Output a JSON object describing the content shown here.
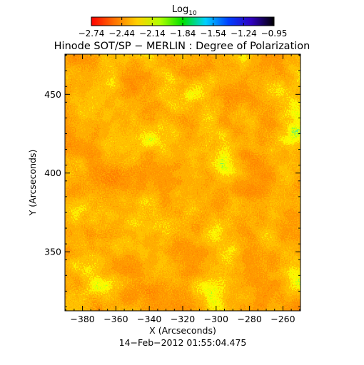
{
  "colorbar": {
    "label_base": "Log",
    "label_sub": "10",
    "ticks": [
      "−2.74",
      "−2.44",
      "−2.14",
      "−1.84",
      "−1.54",
      "−1.24",
      "−0.95"
    ],
    "colors": [
      "#ff0000",
      "#ff7000",
      "#ffd000",
      "#b0ff00",
      "#00e000",
      "#00d0ff",
      "#0040ff",
      "#3000c0",
      "#000000"
    ]
  },
  "title": "Hinode SOT/SP − MERLIN : Degree of Polarization",
  "x_axis": {
    "label": "X (Arcseconds)",
    "ticks": [
      {
        "value": -380,
        "label": "−380"
      },
      {
        "value": -360,
        "label": "−360"
      },
      {
        "value": -340,
        "label": "−340"
      },
      {
        "value": -320,
        "label": "−320"
      },
      {
        "value": -300,
        "label": "−300"
      },
      {
        "value": -280,
        "label": "−280"
      },
      {
        "value": -260,
        "label": "−260"
      }
    ],
    "range": [
      -390.5,
      -249.5
    ]
  },
  "y_axis": {
    "label": "Y (Arcseconds)",
    "ticks": [
      {
        "value": 350,
        "label": "350"
      },
      {
        "value": 400,
        "label": "400"
      },
      {
        "value": 450,
        "label": "450"
      }
    ],
    "range": [
      312.5,
      475.5
    ]
  },
  "timestamp": "14−Feb−2012 01:55:04.475"
}
